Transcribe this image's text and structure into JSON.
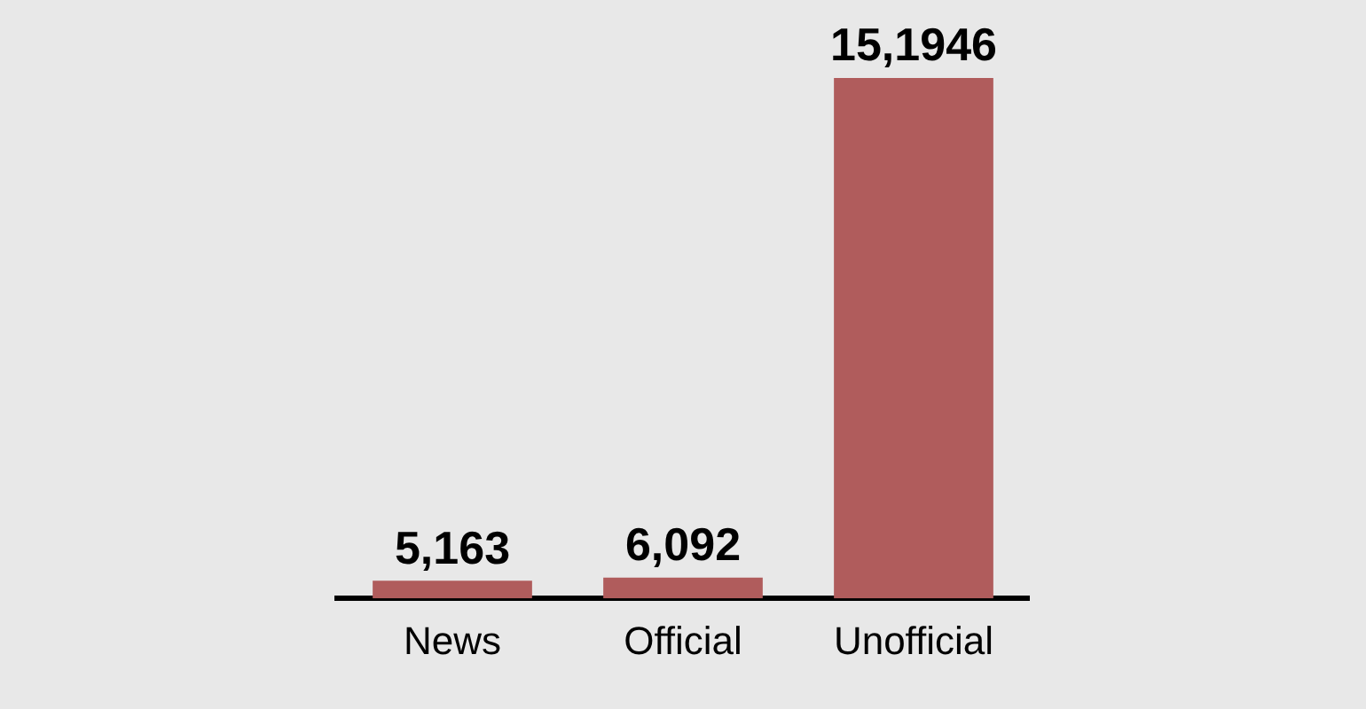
{
  "chart_data": {
    "type": "bar",
    "categories": [
      "News",
      "Official",
      "Unofficial"
    ],
    "values": [
      5163,
      6092,
      151946
    ],
    "value_labels": [
      "5,163",
      "6,092",
      "15,1946"
    ],
    "color": "#b05c5c",
    "grid": false,
    "legend": false
  }
}
